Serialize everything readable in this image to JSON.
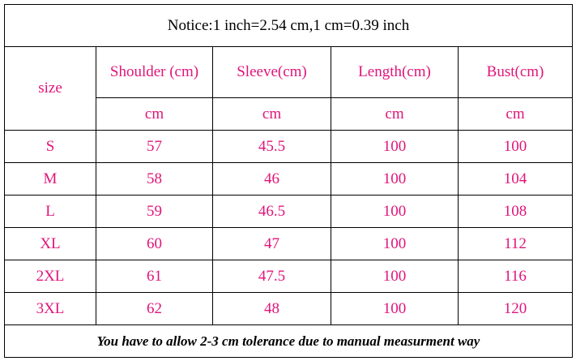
{
  "notice": "Notice:1 inch=2.54 cm,1 cm=0.39 inch",
  "table": {
    "size_label": "size",
    "headers": [
      "Shoulder (cm)",
      "Sleeve(cm)",
      "Length(cm)",
      "Bust(cm)"
    ],
    "units": [
      "cm",
      "cm",
      "cm",
      "cm"
    ],
    "rows": [
      [
        "S",
        57,
        45.5,
        100,
        100
      ],
      [
        "M",
        58,
        46,
        100,
        104
      ],
      [
        "L",
        59,
        46.5,
        100,
        108
      ],
      [
        "XL",
        60,
        47,
        100,
        112
      ],
      [
        "2XL",
        61,
        47.5,
        100,
        116
      ],
      [
        "3XL",
        62,
        48,
        100,
        120
      ]
    ]
  },
  "footer": "You have to allow 2-3 cm tolerance due to manual measurment way"
}
